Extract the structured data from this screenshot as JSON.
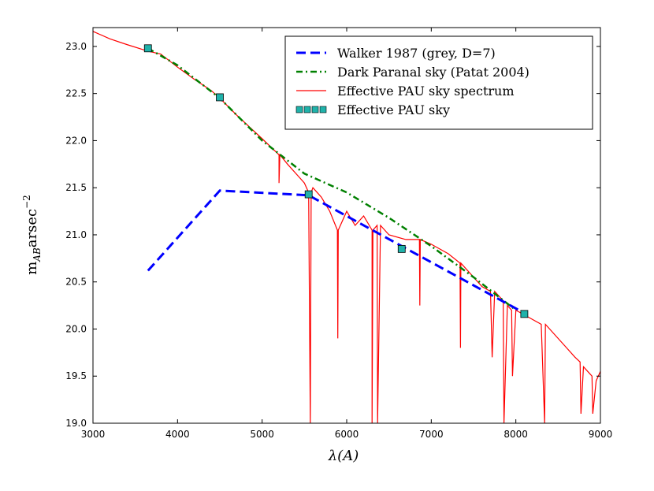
{
  "chart_data": {
    "type": "line",
    "title": "",
    "xlabel": "λ(A)",
    "ylabel_parts": {
      "base": "m",
      "sub": "AB",
      "unit": "arsec",
      "sup": "−2"
    },
    "xlim": [
      3000,
      9000
    ],
    "ylim": [
      19.0,
      23.2
    ],
    "grid": false,
    "legend_position": "top-right",
    "x_ticks": [
      3000,
      4000,
      5000,
      6000,
      7000,
      8000,
      9000
    ],
    "x_tick_labels": [
      "3000",
      "4000",
      "5000",
      "6000",
      "7000",
      "8000",
      "9000"
    ],
    "y_ticks": [
      19.0,
      19.5,
      20.0,
      20.5,
      21.0,
      21.5,
      22.0,
      22.5,
      23.0
    ],
    "y_tick_labels": [
      "19.0",
      "19.5",
      "20.0",
      "20.5",
      "21.0",
      "21.5",
      "22.0",
      "22.5",
      "23.0"
    ],
    "series": [
      {
        "name": "Walker 1987 (grey, D=7)",
        "color": "#0000ff",
        "style": "dashed",
        "x": [
          3650,
          4500,
          5550,
          8100
        ],
        "y": [
          20.62,
          21.47,
          21.42,
          20.17
        ]
      },
      {
        "name": "Dark Paranal sky (Patat 2004)",
        "color": "#008000",
        "style": "dashdot",
        "x": [
          3650,
          4000,
          4500,
          5000,
          5500,
          6000,
          6500,
          7000,
          7500,
          8000
        ],
        "y": [
          22.98,
          22.8,
          22.45,
          22.0,
          21.65,
          21.45,
          21.18,
          20.88,
          20.55,
          20.2
        ]
      },
      {
        "name": "Effective PAU sky spectrum",
        "color": "#ff0000",
        "style": "solid",
        "x": [
          3000,
          3200,
          3400,
          3650,
          3800,
          4000,
          4200,
          4400,
          4500,
          4700,
          5000,
          5200,
          5200,
          5210,
          5300,
          5500,
          5550,
          5570,
          5580,
          5600,
          5700,
          5800,
          5890,
          5895,
          5900,
          6000,
          6100,
          6200,
          6300,
          6300,
          6310,
          6360,
          6365,
          6400,
          6500,
          6700,
          6860,
          6865,
          6870,
          7000,
          7200,
          7340,
          7345,
          7350,
          7500,
          7600,
          7700,
          7720,
          7750,
          7800,
          7850,
          7860,
          7900,
          7950,
          7960,
          8000,
          8100,
          8200,
          8300,
          8340,
          8350,
          8400,
          8500,
          8600,
          8700,
          8760,
          8770,
          8800,
          8850,
          8900,
          8910,
          8950,
          9000
        ],
        "y": [
          23.16,
          23.08,
          23.02,
          22.95,
          22.92,
          22.78,
          22.65,
          22.53,
          22.45,
          22.27,
          22.02,
          21.85,
          21.55,
          21.85,
          21.75,
          21.55,
          21.45,
          19.0,
          21.45,
          21.5,
          21.4,
          21.25,
          21.05,
          19.9,
          21.05,
          21.25,
          21.1,
          21.2,
          21.05,
          19.0,
          21.05,
          21.1,
          19.0,
          21.1,
          21.0,
          20.95,
          20.95,
          20.25,
          20.95,
          20.9,
          20.8,
          20.7,
          19.8,
          20.7,
          20.55,
          20.45,
          20.4,
          19.7,
          20.4,
          20.35,
          20.3,
          19.0,
          20.25,
          20.2,
          19.5,
          20.2,
          20.15,
          20.1,
          20.05,
          19.0,
          20.05,
          20.0,
          19.9,
          19.8,
          19.7,
          19.65,
          19.1,
          19.6,
          19.55,
          19.5,
          19.1,
          19.45,
          19.55
        ]
      },
      {
        "name": "Effective PAU sky",
        "color": "#20b2aa",
        "style": "squares",
        "x": [
          3650,
          4500,
          5550,
          6650,
          8100
        ],
        "y": [
          22.98,
          22.46,
          21.43,
          20.85,
          20.16
        ]
      }
    ]
  }
}
